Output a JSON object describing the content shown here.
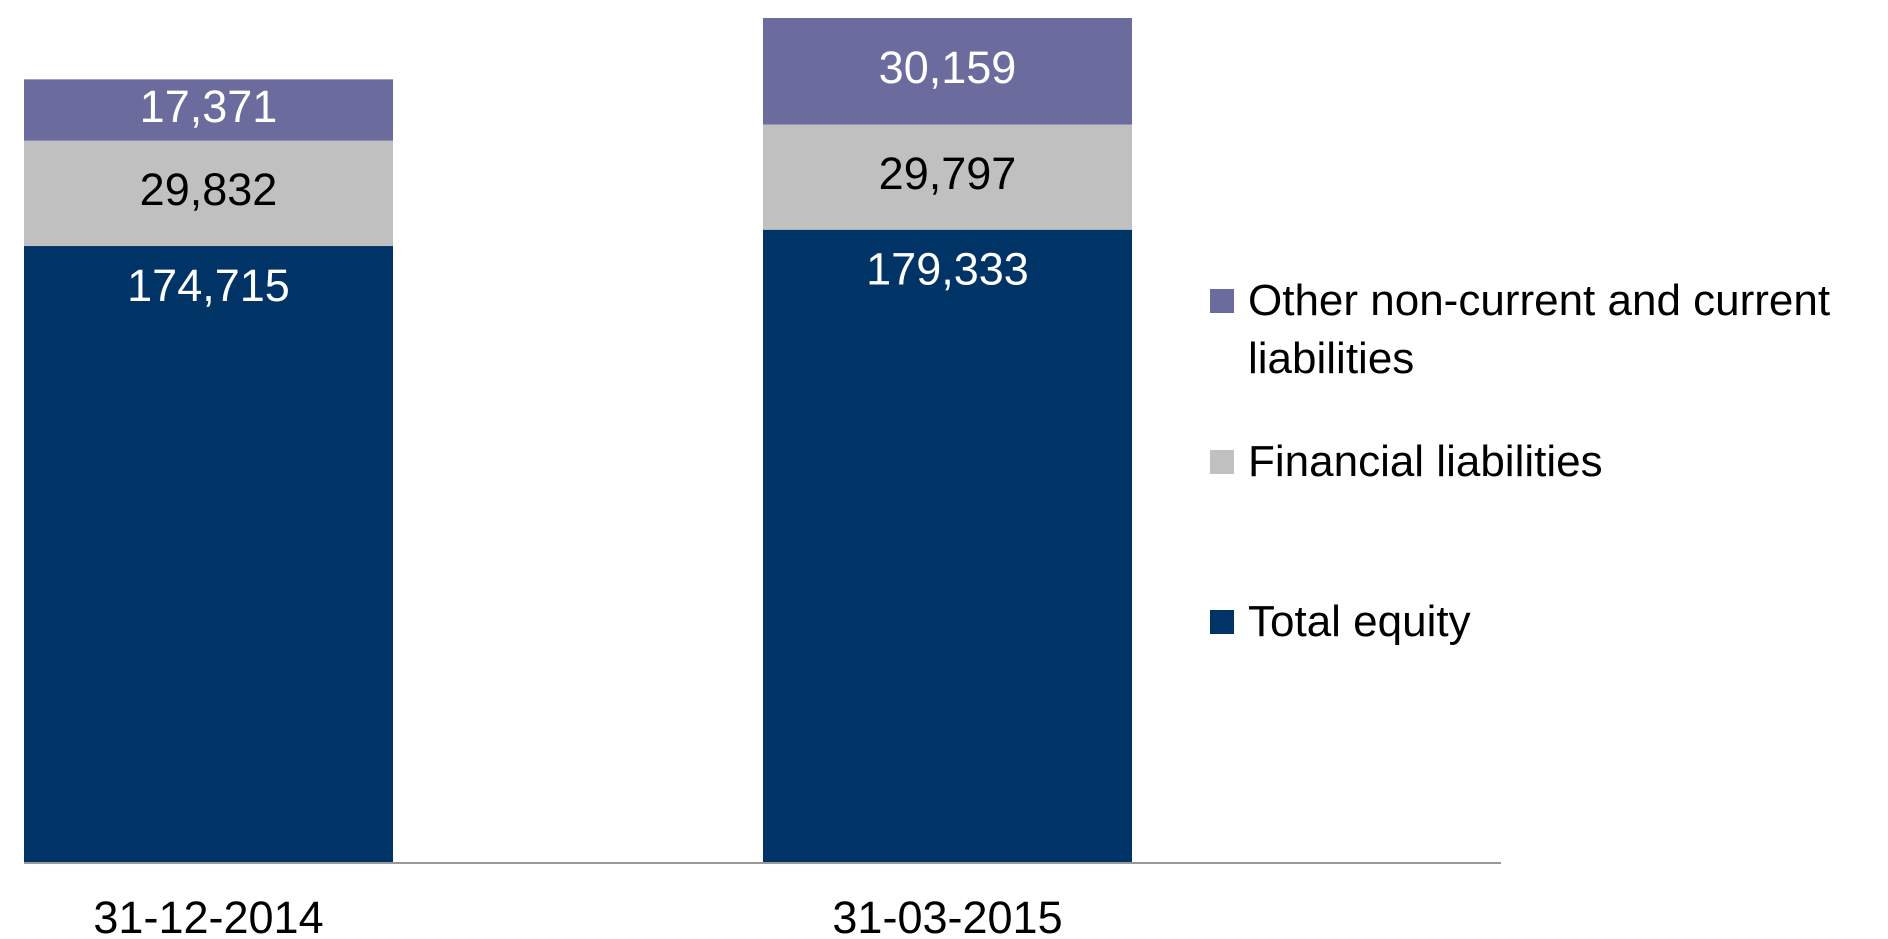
{
  "chart_data": {
    "type": "stacked_bar",
    "categories": [
      "31-12-2014",
      "31-03-2015"
    ],
    "series": [
      {
        "name": "Total equity",
        "color": "#003366",
        "values": [
          174715,
          179333
        ],
        "value_labels": [
          "174,715",
          "179,333"
        ]
      },
      {
        "name": "Financial liabilities",
        "color": "#c0c0c0",
        "values": [
          29832,
          29797
        ],
        "value_labels": [
          "29,832",
          "29,797"
        ]
      },
      {
        "name": "Other non-current and current liabilities",
        "color": "#6b6b9e",
        "values": [
          17371,
          30159
        ],
        "value_labels": [
          "17,371",
          "30,159"
        ]
      }
    ],
    "legend": "right"
  }
}
